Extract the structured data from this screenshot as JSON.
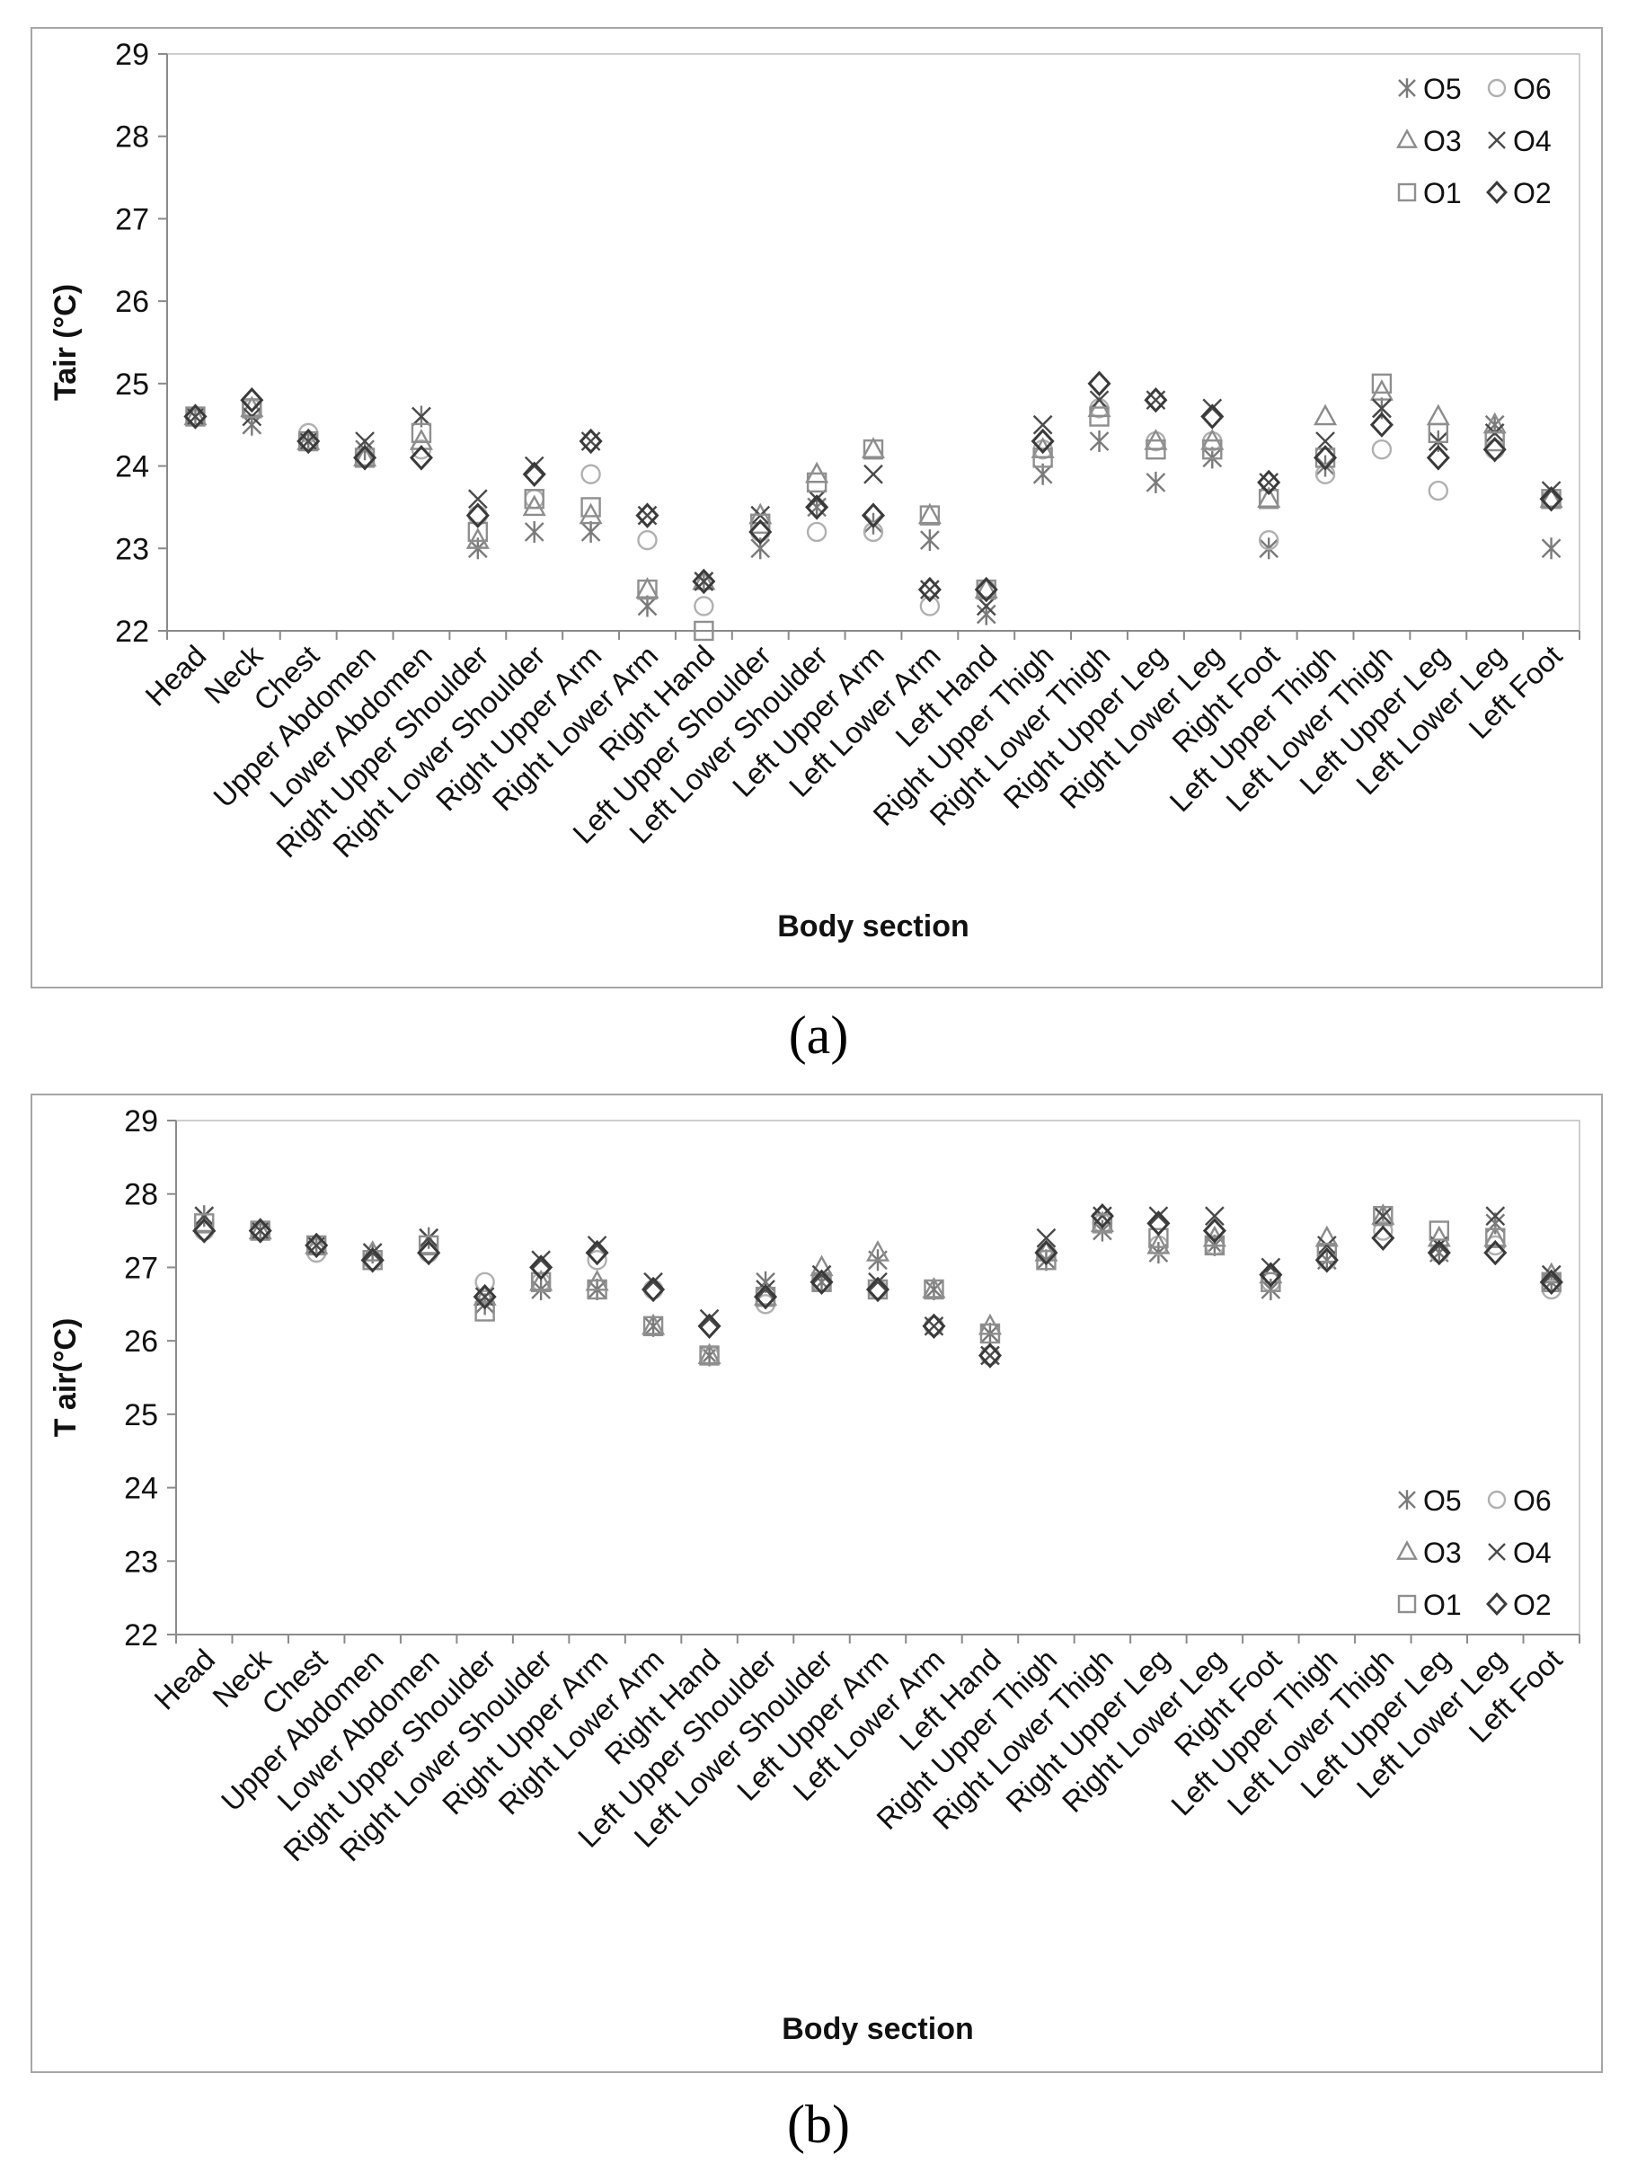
{
  "chart_data": [
    {
      "type": "scatter",
      "panel": "a",
      "ylabel": "Tair (°C)",
      "xlabel": "Body section",
      "ylim": [
        22,
        29
      ],
      "yticks": [
        22,
        23,
        24,
        25,
        26,
        27,
        28,
        29
      ],
      "grid": false,
      "legend_position": "top-right",
      "categories": [
        "Head",
        "Neck",
        "Chest",
        "Upper Abdomen",
        "Lower Abdomen",
        "Right Upper Shoulder",
        "Right Lower Shoulder",
        "Right Upper Arm",
        "Right Lower Arm",
        "Right Hand",
        "Left Upper Shoulder",
        "Left Lower Shoulder",
        "Left Upper Arm",
        "Left Lower Arm",
        "Left Hand",
        "Right Upper Thigh",
        "Right Lower Thigh",
        "Right Upper Leg",
        "Right Lower Leg",
        "Right Foot",
        "Left Upper Thigh",
        "Left Lower Thigh",
        "Left Upper Leg",
        "Left Lower Leg",
        "Left Foot"
      ],
      "series": [
        {
          "name": "O5",
          "marker": "asterisk",
          "values": [
            24.6,
            24.5,
            24.3,
            24.2,
            24.6,
            23.0,
            23.2,
            23.2,
            22.3,
            22.6,
            23.0,
            23.5,
            23.3,
            23.1,
            22.2,
            23.9,
            24.3,
            23.8,
            24.1,
            23.0,
            24.0,
            24.7,
            24.3,
            24.5,
            23.0
          ]
        },
        {
          "name": "O6",
          "marker": "circle",
          "values": [
            24.6,
            24.7,
            24.4,
            24.1,
            24.2,
            23.4,
            23.6,
            23.9,
            23.1,
            22.3,
            23.2,
            23.2,
            23.2,
            22.3,
            22.5,
            24.2,
            24.7,
            24.3,
            24.3,
            23.1,
            23.9,
            24.2,
            23.7,
            24.2,
            23.6
          ]
        },
        {
          "name": "O3",
          "marker": "triangle",
          "values": [
            24.6,
            24.7,
            24.3,
            24.1,
            24.3,
            23.1,
            23.5,
            23.4,
            22.5,
            22.6,
            23.4,
            23.9,
            24.2,
            23.4,
            22.5,
            24.2,
            24.7,
            24.3,
            24.3,
            23.6,
            24.6,
            24.9,
            24.6,
            24.5,
            23.6
          ]
        },
        {
          "name": "O4",
          "marker": "x",
          "values": [
            24.6,
            24.6,
            24.3,
            24.3,
            24.6,
            23.6,
            24.0,
            24.3,
            23.4,
            22.6,
            23.4,
            23.6,
            23.9,
            22.5,
            22.3,
            24.5,
            24.8,
            24.8,
            24.7,
            23.8,
            24.3,
            24.7,
            24.3,
            24.4,
            23.7
          ]
        },
        {
          "name": "O1",
          "marker": "square",
          "values": [
            24.6,
            24.7,
            24.3,
            24.1,
            24.4,
            23.2,
            23.6,
            23.5,
            22.5,
            22.0,
            23.3,
            23.8,
            24.2,
            23.4,
            22.5,
            24.1,
            24.6,
            24.2,
            24.2,
            23.6,
            24.1,
            25.0,
            24.4,
            24.3,
            23.6
          ]
        },
        {
          "name": "O2",
          "marker": "diamond",
          "values": [
            24.6,
            24.8,
            24.3,
            24.1,
            24.1,
            23.4,
            23.9,
            24.3,
            23.4,
            22.6,
            23.2,
            23.5,
            23.4,
            22.5,
            22.5,
            24.3,
            25.0,
            24.8,
            24.6,
            23.8,
            24.1,
            24.5,
            24.1,
            24.2,
            23.6
          ]
        }
      ]
    },
    {
      "type": "scatter",
      "panel": "b",
      "ylabel": "T air(°C)",
      "xlabel": "Body section",
      "ylim": [
        22,
        29
      ],
      "yticks": [
        22,
        23,
        24,
        25,
        26,
        27,
        28,
        29
      ],
      "grid": false,
      "legend_position": "bottom-right",
      "categories": [
        "Head",
        "Neck",
        "Chest",
        "Upper Abdomen",
        "Lower Abdomen",
        "Right Upper Shoulder",
        "Right Lower Shoulder",
        "Right Upper Arm",
        "Right Lower Arm",
        "Right Hand",
        "Left Upper Shoulder",
        "Left Lower Shoulder",
        "Left Upper Arm",
        "Left Lower Arm",
        "Left Hand",
        "Right Upper Thigh",
        "Right Lower Thigh",
        "Right Upper Leg",
        "Right Lower Leg",
        "Right Foot",
        "Left Upper Thigh",
        "Left Lower Thigh",
        "Left Upper Leg",
        "Left Lower Leg",
        "Left Foot"
      ],
      "series": [
        {
          "name": "O5",
          "marker": "asterisk",
          "values": [
            27.7,
            27.5,
            27.3,
            27.2,
            27.4,
            26.5,
            26.7,
            26.7,
            26.2,
            25.8,
            26.8,
            26.8,
            27.1,
            26.7,
            26.1,
            27.1,
            27.5,
            27.2,
            27.3,
            26.7,
            27.1,
            27.7,
            27.2,
            27.6,
            26.8
          ]
        },
        {
          "name": "O6",
          "marker": "circle",
          "values": [
            27.5,
            27.5,
            27.2,
            27.1,
            27.2,
            26.8,
            26.8,
            27.1,
            26.7,
            25.8,
            26.5,
            26.8,
            26.7,
            26.2,
            25.8,
            27.2,
            27.6,
            27.3,
            27.3,
            26.8,
            27.1,
            27.5,
            27.2,
            27.3,
            26.7
          ]
        },
        {
          "name": "O3",
          "marker": "triangle",
          "values": [
            27.6,
            27.5,
            27.3,
            27.2,
            27.3,
            26.6,
            26.8,
            26.8,
            26.2,
            25.8,
            26.6,
            27.0,
            27.2,
            26.7,
            26.2,
            27.2,
            27.6,
            27.3,
            27.4,
            26.9,
            27.4,
            27.7,
            27.4,
            27.4,
            26.9
          ]
        },
        {
          "name": "O4",
          "marker": "x",
          "values": [
            27.7,
            27.5,
            27.3,
            27.2,
            27.4,
            26.6,
            27.1,
            27.3,
            26.8,
            26.3,
            26.7,
            26.9,
            26.8,
            26.2,
            25.8,
            27.4,
            27.7,
            27.7,
            27.7,
            27.0,
            27.3,
            27.7,
            27.3,
            27.7,
            26.9
          ]
        },
        {
          "name": "O1",
          "marker": "square",
          "values": [
            27.6,
            27.5,
            27.3,
            27.1,
            27.3,
            26.4,
            26.8,
            26.7,
            26.2,
            25.8,
            26.6,
            26.8,
            26.7,
            26.7,
            26.1,
            27.1,
            27.6,
            27.4,
            27.3,
            26.8,
            27.2,
            27.7,
            27.5,
            27.4,
            26.8
          ]
        },
        {
          "name": "O2",
          "marker": "diamond",
          "values": [
            27.5,
            27.5,
            27.3,
            27.1,
            27.2,
            26.6,
            27.0,
            27.2,
            26.7,
            26.2,
            26.6,
            26.8,
            26.7,
            26.2,
            25.8,
            27.2,
            27.7,
            27.6,
            27.5,
            26.9,
            27.1,
            27.4,
            27.2,
            27.2,
            26.8
          ]
        }
      ]
    }
  ],
  "captions": {
    "a": "(a)",
    "b": "(b)"
  }
}
